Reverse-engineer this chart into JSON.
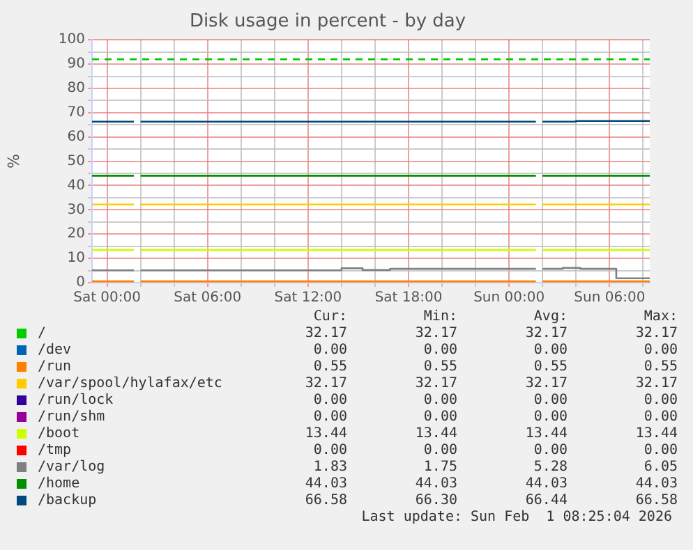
{
  "chart_data": {
    "type": "line",
    "title": "Disk usage in percent - by day",
    "ylabel": "%",
    "xlim": [
      "2026-01-30T23:06",
      "2026-02-01T08:24"
    ],
    "xticks": [
      {
        "value": "2026-01-31T00:00",
        "label": "Sat 00:00"
      },
      {
        "value": "2026-01-31T02:00",
        "label": null
      },
      {
        "value": "2026-01-31T04:00",
        "label": null
      },
      {
        "value": "2026-01-31T06:00",
        "label": "Sat 06:00"
      },
      {
        "value": "2026-01-31T08:00",
        "label": null
      },
      {
        "value": "2026-01-31T10:00",
        "label": null
      },
      {
        "value": "2026-01-31T12:00",
        "label": "Sat 12:00"
      },
      {
        "value": "2026-01-31T14:00",
        "label": null
      },
      {
        "value": "2026-01-31T16:00",
        "label": null
      },
      {
        "value": "2026-01-31T18:00",
        "label": "Sat 18:00"
      },
      {
        "value": "2026-01-31T20:00",
        "label": null
      },
      {
        "value": "2026-01-31T22:00",
        "label": null
      },
      {
        "value": "2026-02-01T00:00",
        "label": "Sun 00:00"
      },
      {
        "value": "2026-02-01T02:00",
        "label": null
      },
      {
        "value": "2026-02-01T04:00",
        "label": null
      },
      {
        "value": "2026-02-01T06:00",
        "label": "Sun 06:00"
      },
      {
        "value": "2026-02-01T08:00",
        "label": null
      }
    ],
    "ylim": [
      0,
      100
    ],
    "yticks": [
      0,
      {
        "value": 5,
        "label": null
      },
      10,
      {
        "value": 15,
        "label": null
      },
      20,
      {
        "value": 25,
        "label": null
      },
      30,
      {
        "value": 35,
        "label": null
      },
      40,
      {
        "value": 45,
        "label": null
      },
      50,
      {
        "value": 55,
        "label": null
      },
      60,
      {
        "value": 65,
        "label": null
      },
      70,
      {
        "value": 75,
        "label": null
      },
      80,
      {
        "value": 85,
        "label": null
      },
      90,
      {
        "value": 95,
        "label": null
      },
      100
    ],
    "grid": true,
    "legend": "bottom",
    "marker": "none",
    "line_style": "solid",
    "ref_lines": [
      {
        "axis": "y",
        "value": 92,
        "color": "#00cc00",
        "line_style": "dashed"
      }
    ],
    "series": [
      {
        "name": "/",
        "color": "#00cc00"
      },
      {
        "name": "/dev",
        "color": "#0066b3"
      },
      {
        "name": "/run",
        "color": "#ff8000",
        "x": [
          "2026-01-30T23:06",
          "2026-01-31T01:36",
          "2026-01-31T01:48",
          "2026-01-31T02:00",
          "2026-02-01T01:36",
          "2026-02-01T01:48",
          "2026-02-01T02:00",
          "2026-02-01T08:24"
        ],
        "values": [
          0.55,
          0.55,
          null,
          0.55,
          0.55,
          null,
          0.55,
          0.55
        ]
      },
      {
        "name": "/var/spool/hylafax/etc",
        "color": "#ffcc00",
        "x": [
          "2026-01-30T23:06",
          "2026-01-31T01:36",
          "2026-01-31T01:48",
          "2026-01-31T02:00",
          "2026-02-01T01:36",
          "2026-02-01T01:48",
          "2026-02-01T02:00",
          "2026-02-01T08:24"
        ],
        "values": [
          32.17,
          32.17,
          null,
          32.17,
          32.17,
          null,
          32.17,
          32.17
        ]
      },
      {
        "name": "/run/lock",
        "color": "#330099"
      },
      {
        "name": "/run/shm",
        "color": "#990099"
      },
      {
        "name": "/boot",
        "color": "#ccff00",
        "x": [
          "2026-01-30T23:06",
          "2026-01-31T01:36",
          "2026-01-31T01:48",
          "2026-01-31T02:00",
          "2026-02-01T01:36",
          "2026-02-01T01:48",
          "2026-02-01T02:00",
          "2026-02-01T08:24"
        ],
        "values": [
          13.44,
          13.44,
          null,
          13.44,
          13.44,
          null,
          13.44,
          13.44
        ]
      },
      {
        "name": "/tmp",
        "color": "#ff0000"
      },
      {
        "name": "/var/log",
        "color": "#808080",
        "x": [
          "2026-01-30T23:06",
          "2026-01-31T01:36",
          "2026-01-31T01:48",
          "2026-01-31T02:00",
          "2026-01-31T14:00",
          "2026-01-31T14:00",
          "2026-01-31T15:15",
          "2026-01-31T15:15",
          "2026-01-31T16:54",
          "2026-01-31T16:54",
          "2026-02-01T01:36",
          "2026-02-01T01:48",
          "2026-02-01T02:00",
          "2026-02-01T03:12",
          "2026-02-01T03:12",
          "2026-02-01T04:15",
          "2026-02-01T04:15",
          "2026-02-01T06:24",
          "2026-02-01T06:24",
          "2026-02-01T08:24"
        ],
        "values": [
          5.1,
          5.1,
          null,
          5.1,
          5.1,
          5.9,
          5.9,
          5.2,
          5.2,
          5.7,
          5.7,
          null,
          5.7,
          5.7,
          6.05,
          6.05,
          5.7,
          5.7,
          1.8,
          1.8
        ]
      },
      {
        "name": "/home",
        "color": "#008f00",
        "x": [
          "2026-01-30T23:06",
          "2026-01-31T01:36",
          "2026-01-31T01:48",
          "2026-01-31T02:00",
          "2026-02-01T01:36",
          "2026-02-01T01:48",
          "2026-02-01T02:00",
          "2026-02-01T08:24"
        ],
        "values": [
          44.03,
          44.03,
          null,
          44.03,
          44.03,
          null,
          44.03,
          44.03
        ]
      },
      {
        "name": "/backup",
        "color": "#00487d",
        "x": [
          "2026-01-30T23:06",
          "2026-01-31T01:36",
          "2026-01-31T01:48",
          "2026-01-31T02:00",
          "2026-02-01T01:36",
          "2026-02-01T01:48",
          "2026-02-01T02:00",
          "2026-02-01T04:00",
          "2026-02-01T04:00",
          "2026-02-01T08:24"
        ],
        "values": [
          66.3,
          66.3,
          null,
          66.3,
          66.3,
          null,
          66.3,
          66.3,
          66.58,
          66.58
        ]
      }
    ],
    "annotations": [
      "Cur:",
      "Min:",
      "Avg:",
      "Max:",
      "32.17",
      "32.17",
      "32.17",
      "32.17",
      "0.00",
      "0.00",
      "0.00",
      "0.00",
      "0.55",
      "0.55",
      "0.55",
      "0.55",
      "32.17",
      "32.17",
      "32.17",
      "32.17",
      "0.00",
      "0.00",
      "0.00",
      "0.00",
      "0.00",
      "0.00",
      "0.00",
      "0.00",
      "13.44",
      "13.44",
      "13.44",
      "13.44",
      "0.00",
      "0.00",
      "0.00",
      "0.00",
      "1.83",
      "1.75",
      "5.28",
      "6.05",
      "44.03",
      "44.03",
      "44.03",
      "44.03",
      "66.58",
      "66.30",
      "66.44",
      "66.58",
      "Last update: Sun Feb  1 08:25:04 2026"
    ]
  }
}
